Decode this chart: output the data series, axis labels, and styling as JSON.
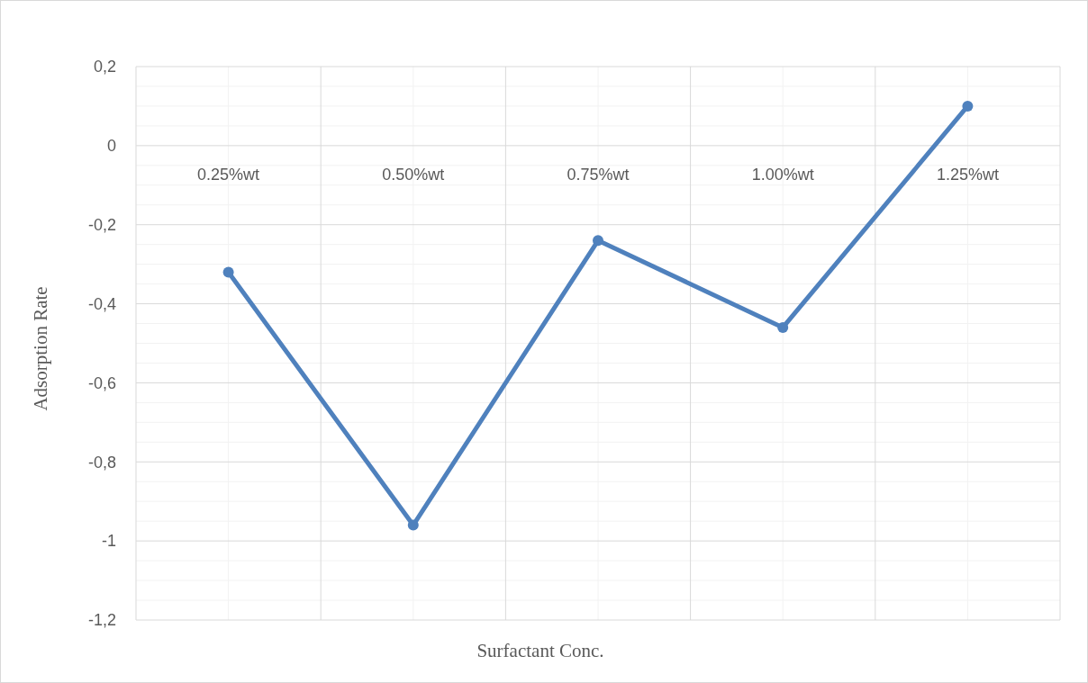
{
  "chart_data": {
    "type": "line",
    "xlabel": "Surfactant Conc.",
    "ylabel": "Adsorption Rate",
    "categories": [
      "0.25%wt",
      "0.50%wt",
      "0.75%wt",
      "1.00%wt",
      "1.25%wt"
    ],
    "series": [
      {
        "color": "#4f81bd",
        "values": [
          -0.32,
          -0.96,
          -0.24,
          -0.46,
          0.1
        ]
      }
    ],
    "ylim": [
      -1.2,
      0.2
    ],
    "yticks": [
      {
        "value": -1.2,
        "label": "-1,2"
      },
      {
        "value": -1,
        "label": "-1"
      },
      {
        "value": -0.8,
        "label": "-0,8"
      },
      {
        "value": -0.6,
        "label": "-0,6"
      },
      {
        "value": -0.4,
        "label": "-0,4"
      },
      {
        "value": -0.2,
        "label": "-0,2"
      },
      {
        "value": 0,
        "label": "0"
      },
      {
        "value": 0.2,
        "label": "0,2"
      }
    ],
    "grid": true,
    "marker": "circle",
    "line_style": "solid"
  }
}
